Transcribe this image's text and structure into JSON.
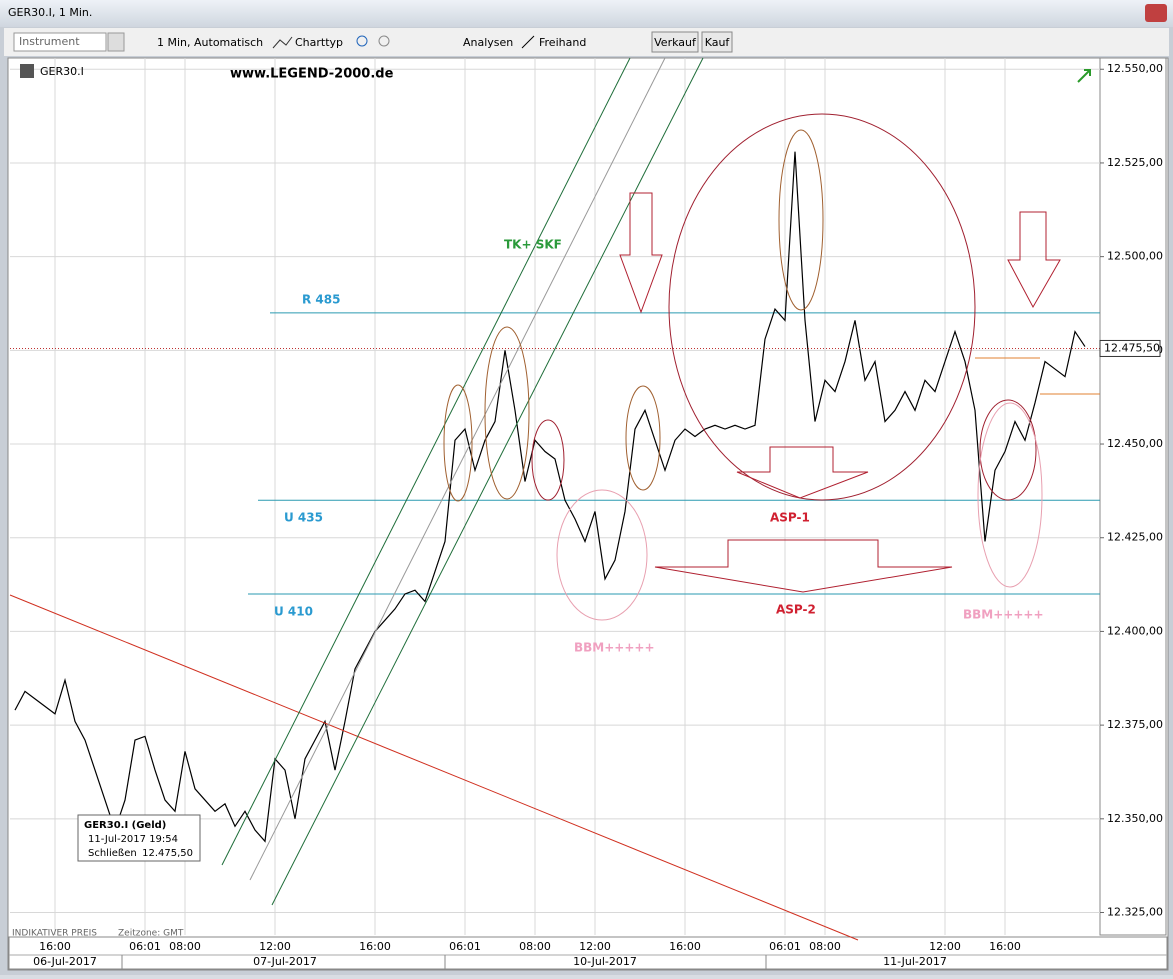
{
  "window": {
    "title": "GER30.I, 1 Min."
  },
  "toolbar": {
    "instrument": "Instrument",
    "interval": "1 Min, Automatisch",
    "chart_type": "Charttyp",
    "analyses": "Analysen",
    "freehand": "Freihand",
    "sell": "Verkauf",
    "buy": "Kauf"
  },
  "chart_data": {
    "type": "line",
    "symbol": "GER30.I",
    "watermark": "www.LEGEND-2000.de",
    "color": "#000000",
    "categories": [
      null,
      null,
      null,
      null,
      "16:00",
      null,
      null,
      null,
      null,
      null,
      null,
      null,
      null,
      "06:01",
      null,
      null,
      null,
      "08:00",
      null,
      null,
      null,
      null,
      null,
      null,
      null,
      null,
      "12:00",
      null,
      null,
      null,
      null,
      null,
      null,
      null,
      null,
      null,
      "16:00",
      null,
      null,
      null,
      null,
      null,
      null,
      null,
      null,
      "06:01",
      null,
      null,
      null,
      null,
      null,
      null,
      "08:00",
      null,
      null,
      null,
      null,
      null,
      "12:00",
      null,
      null,
      null,
      null,
      null,
      null,
      null,
      null,
      "16:00",
      null,
      null,
      null,
      null,
      null,
      null,
      null,
      null,
      null,
      "06:01",
      null,
      null,
      null,
      "08:00",
      null,
      null,
      null,
      null,
      null,
      null,
      null,
      null,
      null,
      null,
      null,
      "12:00",
      null,
      null,
      null,
      null,
      null,
      "16:00",
      null,
      null,
      null,
      null,
      null,
      null,
      null,
      null
    ],
    "dates": [
      null,
      null,
      null,
      null,
      null,
      "06-Jul-2017",
      null,
      null,
      null,
      null,
      null,
      null,
      null,
      null,
      null,
      null,
      null,
      null,
      null,
      null,
      null,
      null,
      null,
      null,
      null,
      null,
      null,
      "07-Jul-2017",
      null,
      null,
      null,
      null,
      null,
      null,
      null,
      null,
      null,
      null,
      null,
      null,
      null,
      null,
      null,
      null,
      null,
      null,
      null,
      null,
      null,
      null,
      null,
      null,
      null,
      null,
      null,
      null,
      null,
      null,
      null,
      "10-Jul-2017",
      null,
      null,
      null,
      null,
      null,
      null,
      null,
      null,
      null,
      null,
      null,
      null,
      null,
      null,
      null,
      null,
      null,
      null,
      null,
      null,
      null,
      null,
      null,
      null,
      null,
      null,
      null,
      null,
      null,
      null,
      "11-Jul-2017",
      null,
      null,
      null,
      null,
      null,
      null,
      null,
      null,
      null,
      null,
      null,
      null,
      null,
      null,
      null,
      null
    ],
    "values": [
      12379,
      12384,
      12382,
      12380,
      12378,
      12387,
      12376,
      12371,
      12363,
      12355,
      12347,
      12355,
      12371,
      12372,
      12363,
      12355,
      12352,
      12368,
      12358,
      12355,
      12352,
      12354,
      12348,
      12352,
      12347,
      12344,
      12366,
      12363,
      12350,
      12366,
      12371,
      12376,
      12363,
      12376,
      12390,
      12395,
      12400,
      12403,
      12406,
      12410,
      12411,
      12408,
      12416,
      12424,
      12451,
      12454,
      12443,
      12451,
      12456,
      12475,
      12459,
      12440,
      12451,
      12448,
      12446,
      12435,
      12430,
      12424,
      12432,
      12414,
      12419,
      12432,
      12454,
      12459,
      12451,
      12443,
      12451,
      12454,
      12452,
      12454,
      12455,
      12454,
      12455,
      12454,
      12455,
      12478,
      12486,
      12483,
      12528,
      12483,
      12456,
      12467,
      12464,
      12472,
      12483,
      12467,
      12472,
      12456,
      12459,
      12464,
      12459,
      12467,
      12464,
      12472,
      12480,
      12472,
      12459,
      12424,
      12443,
      12448,
      12456,
      12451,
      12461,
      12472,
      12470,
      12468,
      12480,
      12476
    ],
    "ylim": [
      12319,
      12553
    ],
    "yticks": [
      {
        "value": 12325,
        "label": "12.325,00"
      },
      {
        "value": 12350,
        "label": "12.350,00"
      },
      {
        "value": 12375,
        "label": "12.375,00"
      },
      {
        "value": 12400,
        "label": "12.400,00"
      },
      {
        "value": 12425,
        "label": "12.425,00"
      },
      {
        "value": 12450,
        "label": "12.450,00"
      },
      {
        "value": 12475,
        "label": "12.475,00"
      },
      {
        "value": 12500,
        "label": "12.500,00"
      },
      {
        "value": 12525,
        "label": "12.525,00"
      },
      {
        "value": 12550,
        "label": "12.550,00"
      }
    ],
    "last": {
      "value": 12475.5,
      "label": "12.475,50"
    },
    "levels": [
      {
        "label": "R 485",
        "value": 12485
      },
      {
        "label": "U 435",
        "value": 12435
      },
      {
        "label": "U 410",
        "value": 12410
      }
    ],
    "annotations": [
      "TK+  SKF",
      "ASP-1",
      "ASP-2",
      "BBM+++++",
      "BBM+++++"
    ],
    "grid": true,
    "footer": {
      "price_type": "INDIKATIVER PREIS",
      "timezone": "Zeitzone: GMT"
    },
    "tooltip": {
      "title": "GER30.I (Geld)",
      "time": "11-Jul-2017 19:54",
      "close_label": "Schließen",
      "close": "12.475,50"
    }
  }
}
